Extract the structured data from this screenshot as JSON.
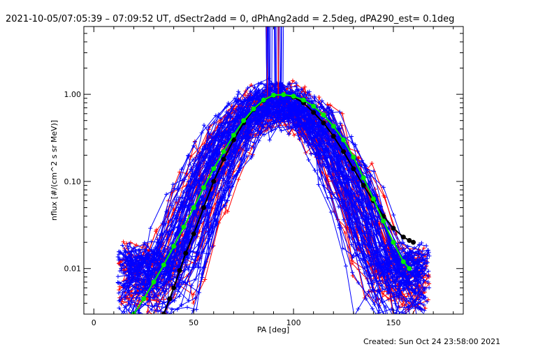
{
  "chart_data": {
    "type": "line",
    "title": "2021-10-05/07:05:39 – 07:09:52 UT, dSectr2add = 0, dPhAng2add = 2.5deg, dPA290_est=  0.1deg",
    "xlabel": "PA [deg]",
    "ylabel": "nflux [#/(cm^2 s sr MeV)]",
    "xlim": [
      -5,
      185
    ],
    "ylim": [
      0.003,
      6
    ],
    "yscale": "log",
    "xticks": [
      {
        "value": 0,
        "label": "0"
      },
      {
        "value": 50,
        "label": "50"
      },
      {
        "value": 100,
        "label": "100"
      },
      {
        "value": 150,
        "label": "150"
      }
    ],
    "yticks": [
      {
        "value": 0.01,
        "label": "0.01"
      },
      {
        "value": 0.1,
        "label": "0.10"
      },
      {
        "value": 1.0,
        "label": "1.00"
      }
    ],
    "colors": {
      "blue_series": "#0000ff",
      "red_series": "#ff0000",
      "black_fit": "#000000",
      "green_fit": "#00ee00"
    },
    "series": [
      {
        "color": "#000000",
        "marker": "circle",
        "x": [
          35,
          38,
          40,
          43,
          46,
          50,
          55,
          60,
          65,
          70,
          75,
          80,
          85,
          90,
          95,
          100,
          105,
          110,
          115,
          120,
          125,
          130,
          135,
          140,
          145,
          150,
          155,
          158,
          160
        ],
        "y": [
          0.003,
          0.0045,
          0.006,
          0.0095,
          0.015,
          0.025,
          0.05,
          0.1,
          0.18,
          0.3,
          0.47,
          0.67,
          0.85,
          0.97,
          0.99,
          0.93,
          0.8,
          0.62,
          0.47,
          0.33,
          0.22,
          0.14,
          0.09,
          0.06,
          0.04,
          0.029,
          0.023,
          0.021,
          0.02
        ]
      },
      {
        "color": "#00ee00",
        "marker": "circle",
        "x": [
          20,
          25,
          30,
          35,
          40,
          45,
          50,
          55,
          60,
          65,
          70,
          75,
          80,
          85,
          90,
          95,
          100,
          105,
          110,
          115,
          120,
          125,
          130,
          135,
          140,
          145,
          150,
          155,
          158
        ],
        "y": [
          0.003,
          0.0045,
          0.007,
          0.011,
          0.018,
          0.03,
          0.05,
          0.085,
          0.14,
          0.22,
          0.34,
          0.5,
          0.68,
          0.86,
          0.98,
          0.99,
          0.95,
          0.86,
          0.73,
          0.58,
          0.43,
          0.3,
          0.19,
          0.11,
          0.063,
          0.035,
          0.02,
          0.012,
          0.01
        ]
      }
    ]
  },
  "footer": {
    "created": "Created: Sun Oct 24 23:58:00 2021"
  }
}
